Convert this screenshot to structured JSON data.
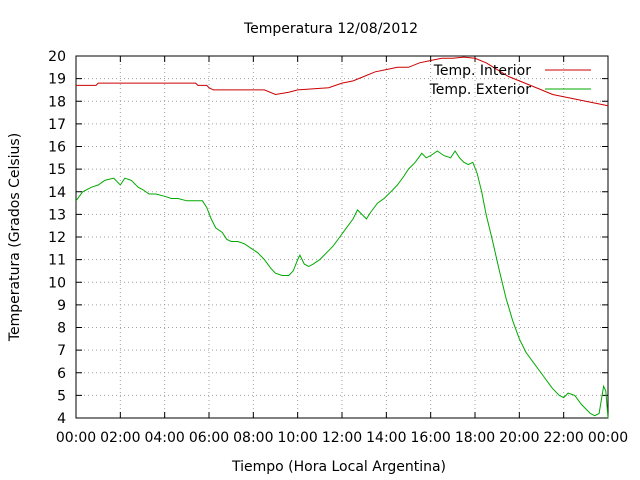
{
  "chart_data": {
    "type": "line",
    "title": "Temperatura 12/08/2012",
    "xlabel": "Tiempo (Hora Local Argentina)",
    "ylabel": "Temperatura (Grados Celsius)",
    "xlim": [
      0,
      24
    ],
    "ylim": [
      4,
      20
    ],
    "x_tick_labels": [
      "00:00",
      "02:00",
      "04:00",
      "06:00",
      "08:00",
      "10:00",
      "12:00",
      "14:00",
      "16:00",
      "18:00",
      "20:00",
      "22:00",
      "00:00"
    ],
    "y_ticks": [
      4,
      5,
      6,
      7,
      8,
      9,
      10,
      11,
      12,
      13,
      14,
      15,
      16,
      17,
      18,
      19,
      20
    ],
    "grid": true,
    "legend_position": "top-right",
    "series": [
      {
        "name": "Temp. Interior",
        "color": "#cc0000",
        "points": [
          [
            0,
            18.7
          ],
          [
            0.9,
            18.7
          ],
          [
            1,
            18.8
          ],
          [
            5.4,
            18.8
          ],
          [
            5.5,
            18.7
          ],
          [
            5.9,
            18.7
          ],
          [
            6,
            18.6
          ],
          [
            6.2,
            18.5
          ],
          [
            8.5,
            18.5
          ],
          [
            9,
            18.3
          ],
          [
            9.6,
            18.4
          ],
          [
            10,
            18.5
          ],
          [
            11.4,
            18.6
          ],
          [
            12,
            18.8
          ],
          [
            12.5,
            18.9
          ],
          [
            13,
            19.1
          ],
          [
            13.5,
            19.3
          ],
          [
            14,
            19.4
          ],
          [
            14.5,
            19.5
          ],
          [
            15,
            19.5
          ],
          [
            15.5,
            19.7
          ],
          [
            16,
            19.8
          ],
          [
            16.5,
            19.9
          ],
          [
            17,
            19.9
          ],
          [
            17.5,
            19.95
          ],
          [
            18,
            19.9
          ],
          [
            18.5,
            19.7
          ],
          [
            19,
            19.4
          ],
          [
            19.5,
            19.1
          ],
          [
            20,
            18.9
          ],
          [
            20.5,
            18.7
          ],
          [
            21,
            18.5
          ],
          [
            21.5,
            18.3
          ],
          [
            22,
            18.2
          ],
          [
            22.5,
            18.1
          ],
          [
            23,
            18.0
          ],
          [
            23.5,
            17.9
          ],
          [
            24,
            17.8
          ]
        ]
      },
      {
        "name": "Temp. Exterior",
        "color": "#00aa00",
        "points": [
          [
            0,
            13.6
          ],
          [
            0.3,
            14.0
          ],
          [
            0.7,
            14.2
          ],
          [
            1.0,
            14.3
          ],
          [
            1.3,
            14.5
          ],
          [
            1.7,
            14.6
          ],
          [
            2.0,
            14.3
          ],
          [
            2.2,
            14.6
          ],
          [
            2.5,
            14.5
          ],
          [
            2.8,
            14.2
          ],
          [
            3.0,
            14.1
          ],
          [
            3.3,
            13.9
          ],
          [
            3.6,
            13.9
          ],
          [
            4.0,
            13.8
          ],
          [
            4.3,
            13.7
          ],
          [
            4.6,
            13.7
          ],
          [
            5.0,
            13.6
          ],
          [
            5.4,
            13.6
          ],
          [
            5.7,
            13.6
          ],
          [
            5.9,
            13.3
          ],
          [
            6.1,
            12.8
          ],
          [
            6.3,
            12.4
          ],
          [
            6.6,
            12.2
          ],
          [
            6.8,
            11.9
          ],
          [
            7.0,
            11.8
          ],
          [
            7.3,
            11.8
          ],
          [
            7.6,
            11.7
          ],
          [
            7.9,
            11.5
          ],
          [
            8.2,
            11.3
          ],
          [
            8.5,
            11.0
          ],
          [
            8.8,
            10.6
          ],
          [
            9.0,
            10.4
          ],
          [
            9.3,
            10.3
          ],
          [
            9.6,
            10.3
          ],
          [
            9.8,
            10.5
          ],
          [
            10.0,
            11.0
          ],
          [
            10.1,
            11.2
          ],
          [
            10.3,
            10.8
          ],
          [
            10.5,
            10.7
          ],
          [
            10.7,
            10.8
          ],
          [
            11.0,
            11.0
          ],
          [
            11.3,
            11.3
          ],
          [
            11.6,
            11.6
          ],
          [
            11.9,
            12.0
          ],
          [
            12.2,
            12.4
          ],
          [
            12.5,
            12.8
          ],
          [
            12.7,
            13.2
          ],
          [
            12.9,
            13.0
          ],
          [
            13.1,
            12.8
          ],
          [
            13.3,
            13.1
          ],
          [
            13.6,
            13.5
          ],
          [
            13.9,
            13.7
          ],
          [
            14.2,
            14.0
          ],
          [
            14.5,
            14.3
          ],
          [
            14.8,
            14.7
          ],
          [
            15.0,
            15.0
          ],
          [
            15.3,
            15.3
          ],
          [
            15.6,
            15.7
          ],
          [
            15.8,
            15.5
          ],
          [
            16.0,
            15.6
          ],
          [
            16.3,
            15.8
          ],
          [
            16.6,
            15.6
          ],
          [
            16.9,
            15.5
          ],
          [
            17.1,
            15.8
          ],
          [
            17.3,
            15.5
          ],
          [
            17.5,
            15.3
          ],
          [
            17.7,
            15.2
          ],
          [
            17.9,
            15.3
          ],
          [
            18.1,
            14.8
          ],
          [
            18.3,
            14.0
          ],
          [
            18.5,
            13.0
          ],
          [
            18.8,
            11.8
          ],
          [
            19.1,
            10.5
          ],
          [
            19.4,
            9.3
          ],
          [
            19.7,
            8.3
          ],
          [
            20.0,
            7.5
          ],
          [
            20.3,
            6.9
          ],
          [
            20.6,
            6.5
          ],
          [
            20.9,
            6.1
          ],
          [
            21.2,
            5.7
          ],
          [
            21.5,
            5.3
          ],
          [
            21.8,
            5.0
          ],
          [
            22.0,
            4.9
          ],
          [
            22.2,
            5.1
          ],
          [
            22.5,
            5.0
          ],
          [
            22.8,
            4.6
          ],
          [
            23.0,
            4.4
          ],
          [
            23.2,
            4.2
          ],
          [
            23.4,
            4.1
          ],
          [
            23.6,
            4.2
          ],
          [
            23.8,
            5.4
          ],
          [
            23.9,
            5.2
          ],
          [
            24.0,
            4.0
          ]
        ]
      }
    ]
  }
}
